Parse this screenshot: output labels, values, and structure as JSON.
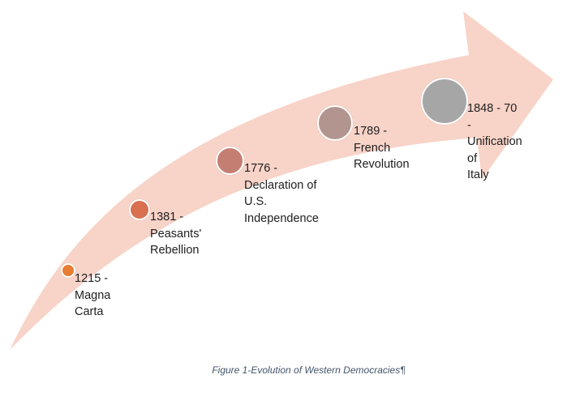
{
  "diagram": {
    "arrow_color": "#f8d3c8",
    "milestones": [
      {
        "text": "1215 -\nMagna\nCarta",
        "color": "#e87d33"
      },
      {
        "text": "1381 -\nPeasants'\nRebellion",
        "color": "#d9704f"
      },
      {
        "text": "1776 -\nDeclaration of\nU.S.\nIndependence",
        "color": "#c47f72"
      },
      {
        "text": "1789 - French\nRevolution",
        "color": "#b3958f"
      },
      {
        "text": "1848 - 70 -\nUnification of\nItaly",
        "color": "#a6a6a6"
      }
    ]
  },
  "caption": {
    "text": "Figure 1-Evolution of Western Democracies",
    "mark": "¶",
    "color": "#44546a"
  }
}
